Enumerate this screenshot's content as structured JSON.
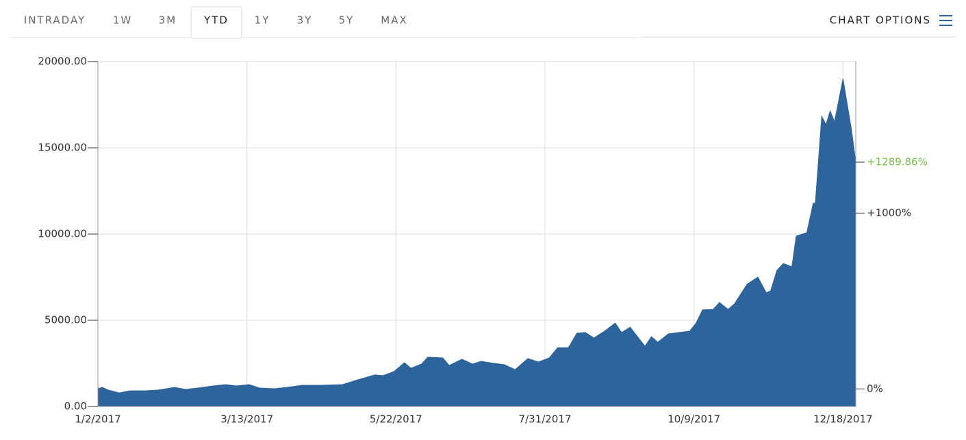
{
  "toolbar": {
    "tabs": [
      "INTRADAY",
      "1W",
      "3M",
      "YTD",
      "1Y",
      "3Y",
      "5Y",
      "MAX"
    ],
    "selected": 3,
    "options": "CHART OPTIONS"
  },
  "chart_data": {
    "type": "area",
    "color": "#2e649c",
    "grid": true,
    "x": [
      "2017-01-02",
      "2017-01-04",
      "2017-01-07",
      "2017-01-12",
      "2017-01-17",
      "2017-01-24",
      "2017-01-30",
      "2017-02-07",
      "2017-02-12",
      "2017-02-18",
      "2017-02-25",
      "2017-03-03",
      "2017-03-08",
      "2017-03-14",
      "2017-03-19",
      "2017-03-26",
      "2017-04-01",
      "2017-04-08",
      "2017-04-17",
      "2017-04-27",
      "2017-05-03",
      "2017-05-12",
      "2017-05-16",
      "2017-05-21",
      "2017-05-26",
      "2017-05-29",
      "2017-06-03",
      "2017-06-06",
      "2017-06-13",
      "2017-06-16",
      "2017-06-22",
      "2017-06-27",
      "2017-07-01",
      "2017-07-05",
      "2017-07-12",
      "2017-07-17",
      "2017-07-23",
      "2017-07-28",
      "2017-08-02",
      "2017-08-06",
      "2017-08-11",
      "2017-08-15",
      "2017-08-19",
      "2017-08-23",
      "2017-08-28",
      "2017-09-02",
      "2017-09-05",
      "2017-09-09",
      "2017-09-16",
      "2017-09-19",
      "2017-09-22",
      "2017-09-27",
      "2017-10-02",
      "2017-10-07",
      "2017-10-10",
      "2017-10-13",
      "2017-10-18",
      "2017-10-21",
      "2017-10-25",
      "2017-10-28",
      "2017-11-03",
      "2017-11-08",
      "2017-11-12",
      "2017-11-14",
      "2017-11-17",
      "2017-11-20",
      "2017-11-24",
      "2017-11-26",
      "2017-12-01",
      "2017-12-04",
      "2017-12-05",
      "2017-12-08",
      "2017-12-10",
      "2017-12-12",
      "2017-12-14",
      "2017-12-18",
      "2017-12-22",
      "2017-12-24"
    ],
    "values": [
      1030,
      1110,
      950,
      790,
      910,
      910,
      950,
      1110,
      990,
      1070,
      1190,
      1270,
      1190,
      1270,
      1070,
      1030,
      1110,
      1230,
      1230,
      1270,
      1510,
      1830,
      1790,
      2020,
      2540,
      2220,
      2460,
      2860,
      2820,
      2380,
      2740,
      2460,
      2620,
      2540,
      2420,
      2140,
      2780,
      2580,
      2820,
      3410,
      3410,
      4250,
      4290,
      3970,
      4370,
      4840,
      4290,
      4600,
      3490,
      4050,
      3730,
      4210,
      4290,
      4370,
      4840,
      5600,
      5630,
      6030,
      5630,
      5950,
      7100,
      7500,
      6590,
      6710,
      7900,
      8290,
      8100,
      9880,
      10080,
      11790,
      11790,
      16830,
      16350,
      17140,
      16510,
      19010,
      16030,
      14170
    ],
    "xlim": [
      "2017-01-02",
      "2017-12-24"
    ],
    "xticks": [
      {
        "value": "2017-01-02",
        "label": "1/2/2017"
      },
      {
        "value": "2017-03-13",
        "label": "3/13/2017"
      },
      {
        "value": "2017-05-22",
        "label": "5/22/2017"
      },
      {
        "value": "2017-07-31",
        "label": "7/31/2017"
      },
      {
        "value": "2017-10-09",
        "label": "10/9/2017"
      },
      {
        "value": "2017-12-18",
        "label": "12/18/2017"
      }
    ],
    "ylim": [
      0,
      20000
    ],
    "yticks": [
      {
        "value": 0,
        "label": "0.00"
      },
      {
        "value": 5000,
        "label": "5000.00"
      },
      {
        "value": 10000,
        "label": "10000.00"
      },
      {
        "value": 15000,
        "label": "15000.00"
      },
      {
        "value": 20000,
        "label": "20000.00"
      }
    ],
    "y2lim": [
      -100,
      1862
    ],
    "y2ticks": [
      {
        "value": 0,
        "label": "0%"
      },
      {
        "value": 1000,
        "label": "+1000%"
      }
    ],
    "current_change": {
      "value": 1289.86,
      "label": "+1289.86%",
      "color": "#7ac143"
    }
  }
}
